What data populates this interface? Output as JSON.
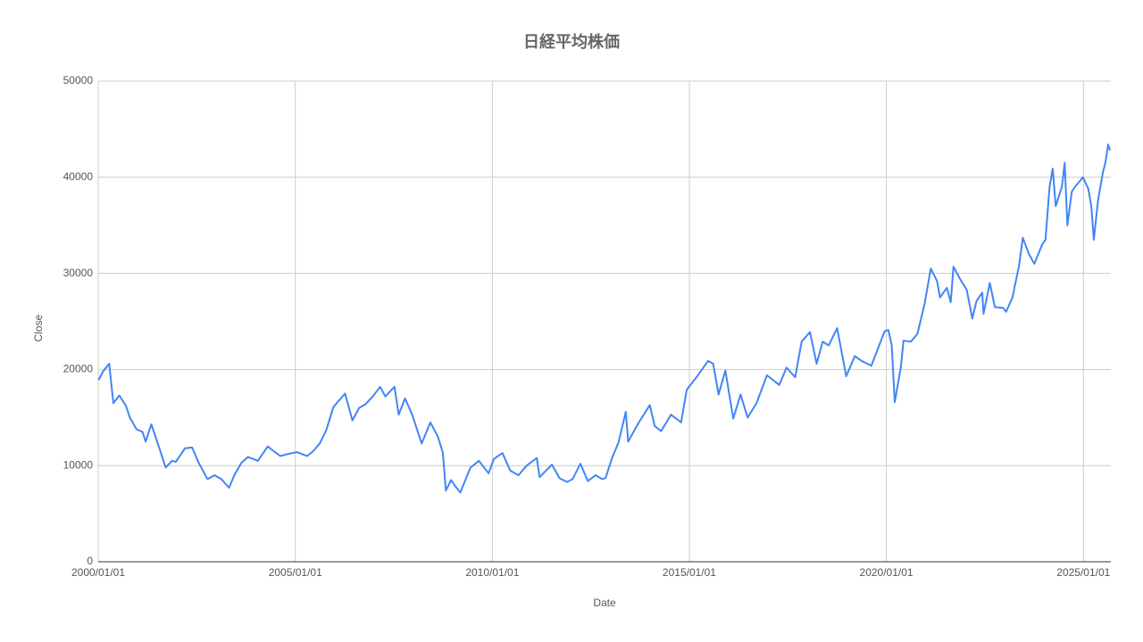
{
  "chart_data": {
    "type": "line",
    "title": "日経平均株価",
    "x_label": "Date",
    "y_label": "Close",
    "color": "#4285f4",
    "grid": true,
    "xlim": [
      "2000/01/01",
      "2025/09/12"
    ],
    "xticks": [
      "2000/01/01",
      "2005/01/01",
      "2010/01/01",
      "2015/01/01",
      "2020/01/01",
      "2025/01/01"
    ],
    "ylim": [
      0,
      50000
    ],
    "yticks": [
      0,
      10000,
      20000,
      30000,
      40000,
      50000
    ],
    "x": [
      "2000/01/04",
      "2000/02/15",
      "2000/04/12",
      "2000/05/20",
      "2000/07/15",
      "2000/09/15",
      "2000/10/20",
      "2000/12/20",
      "2001/02/15",
      "2001/03/15",
      "2001/05/07",
      "2001/07/15",
      "2001/09/17",
      "2001/11/15",
      "2001/12/20",
      "2002/03/15",
      "2002/05/20",
      "2002/07/20",
      "2002/10/10",
      "2002/12/15",
      "2003/02/15",
      "2003/04/28",
      "2003/06/15",
      "2003/08/20",
      "2003/10/20",
      "2004/01/20",
      "2004/04/20",
      "2004/06/15",
      "2004/08/15",
      "2004/10/20",
      "2005/01/15",
      "2005/04/20",
      "2005/06/15",
      "2005/08/15",
      "2005/10/15",
      "2005/12/20",
      "2006/04/07",
      "2006/06/14",
      "2006/08/15",
      "2006/10/15",
      "2006/12/20",
      "2007/02/26",
      "2007/04/15",
      "2007/07/09",
      "2007/08/17",
      "2007/10/15",
      "2007/12/20",
      "2008/03/17",
      "2008/06/06",
      "2008/08/15",
      "2008/09/30",
      "2008/10/27",
      "2008/12/15",
      "2009/01/20",
      "2009/03/10",
      "2009/06/12",
      "2009/08/30",
      "2009/11/27",
      "2010/01/15",
      "2010/04/05",
      "2010/06/15",
      "2010/08/31",
      "2010/11/15",
      "2011/02/17",
      "2011/03/15",
      "2011/05/15",
      "2011/07/08",
      "2011/09/15",
      "2011/11/25",
      "2012/01/15",
      "2012/03/27",
      "2012/06/04",
      "2012/08/15",
      "2012/10/15",
      "2012/11/15",
      "2013/01/15",
      "2013/03/15",
      "2013/05/22",
      "2013/06/13",
      "2013/09/15",
      "2013/12/30",
      "2014/02/15",
      "2014/04/15",
      "2014/07/15",
      "2014/10/17",
      "2014/12/08",
      "2015/03/15",
      "2015/06/24",
      "2015/08/10",
      "2015/09/29",
      "2015/12/01",
      "2016/02/12",
      "2016/04/20",
      "2016/06/24",
      "2016/09/15",
      "2016/12/20",
      "2017/04/14",
      "2017/06/20",
      "2017/09/08",
      "2017/11/07",
      "2018/01/23",
      "2018/03/26",
      "2018/05/21",
      "2018/07/15",
      "2018/10/02",
      "2018/12/25",
      "2019/03/15",
      "2019/05/15",
      "2019/08/15",
      "2019/12/17",
      "2020/01/20",
      "2020/02/20",
      "2020/03/19",
      "2020/05/15",
      "2020/06/08",
      "2020/08/15",
      "2020/10/15",
      "2020/12/20",
      "2021/02/16",
      "2021/04/15",
      "2021/05/13",
      "2021/07/15",
      "2021/08/20",
      "2021/09/14",
      "2021/11/15",
      "2022/01/15",
      "2022/03/08",
      "2022/04/15",
      "2022/06/08",
      "2022/06/20",
      "2022/08/17",
      "2022/10/03",
      "2022/12/20",
      "2023/01/15",
      "2023/03/15",
      "2023/05/15",
      "2023/06/19",
      "2023/08/15",
      "2023/10/04",
      "2023/12/15",
      "2024/01/15",
      "2024/02/22",
      "2024/03/22",
      "2024/04/19",
      "2024/06/15",
      "2024/07/11",
      "2024/08/05",
      "2024/09/15",
      "2024/10/15",
      "2024/12/27",
      "2025/02/15",
      "2025/03/15",
      "2025/04/07",
      "2025/05/15",
      "2025/06/30",
      "2025/07/23",
      "2025/08/18",
      "2025/09/05"
    ],
    "values": [
      18900,
      19800,
      20600,
      16500,
      17300,
      16200,
      15000,
      13800,
      13500,
      12500,
      14300,
      12000,
      9800,
      10500,
      10400,
      11800,
      11900,
      10300,
      8600,
      9000,
      8600,
      7700,
      9000,
      10300,
      10900,
      10500,
      12000,
      11500,
      11000,
      11200,
      11400,
      11000,
      11500,
      12300,
      13700,
      16100,
      17500,
      14700,
      16000,
      16400,
      17200,
      18200,
      17200,
      18200,
      15300,
      17000,
      15300,
      12300,
      14500,
      13000,
      11300,
      7400,
      8500,
      7900,
      7200,
      9800,
      10500,
      9200,
      10700,
      11300,
      9500,
      9000,
      10000,
      10800,
      8800,
      9500,
      10100,
      8700,
      8300,
      8600,
      10200,
      8400,
      9000,
      8600,
      8700,
      10800,
      12400,
      15600,
      12500,
      14400,
      16300,
      14100,
      13600,
      15300,
      14500,
      17900,
      19300,
      20900,
      20600,
      17400,
      19900,
      14900,
      17400,
      15000,
      16500,
      19400,
      18400,
      20200,
      19200,
      22900,
      23900,
      20600,
      22900,
      22500,
      24300,
      19300,
      21400,
      20900,
      20400,
      24000,
      24100,
      22500,
      16600,
      20300,
      23000,
      22900,
      23700,
      26800,
      30500,
      29200,
      27500,
      28500,
      27000,
      30700,
      29400,
      28300,
      25300,
      27100,
      28000,
      25800,
      29000,
      26500,
      26400,
      26000,
      27500,
      30800,
      33700,
      32000,
      31000,
      33000,
      33500,
      39000,
      40900,
      37000,
      39000,
      41500,
      35000,
      38500,
      39000,
      40000,
      38800,
      37000,
      33500,
      37500,
      40500,
      41500,
      43400,
      42800
    ]
  }
}
